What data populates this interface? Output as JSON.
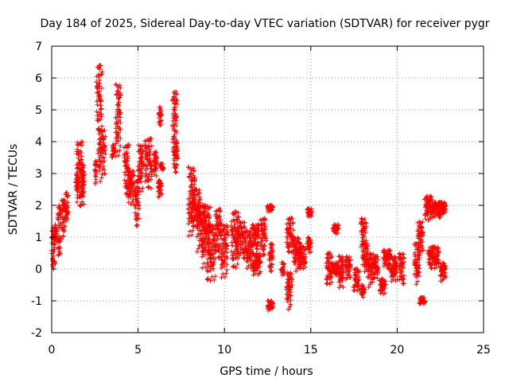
{
  "chart_data": {
    "type": "scatter",
    "title": "Day 184 of 2025, Sidereal Day-to-day VTEC variation (SDTVAR) for receiver pygr",
    "xlabel": "GPS time / hours",
    "ylabel": "SDTVAR / TECUs",
    "xlim": [
      0,
      25
    ],
    "ylim": [
      -2,
      7
    ],
    "x_ticks": [
      0,
      5,
      10,
      15,
      20,
      25
    ],
    "y_ticks": [
      -2,
      -1,
      0,
      1,
      2,
      3,
      4,
      5,
      6,
      7
    ],
    "x_tick_labels": [
      "0",
      "5",
      "10",
      "15",
      "20",
      "25"
    ],
    "y_tick_labels": [
      "-2",
      "-1",
      "0",
      "1",
      "2",
      "3",
      "4",
      "5",
      "6",
      "7"
    ],
    "grid": true,
    "marker": "+",
    "series_color": "#ff0000",
    "series": [
      {
        "name": "SDTVAR",
        "segments": [
          [
            0.0,
            0.2,
            0.0,
            1.3
          ],
          [
            0.15,
            0.3,
            0.9,
            1.4
          ],
          [
            0.35,
            0.55,
            0.4,
            2.0
          ],
          [
            0.6,
            0.8,
            1.0,
            2.2
          ],
          [
            0.8,
            0.95,
            1.5,
            2.4
          ],
          [
            1.4,
            1.55,
            2.3,
            3.0
          ],
          [
            1.45,
            1.8,
            1.9,
            4.0
          ],
          [
            1.7,
            1.9,
            2.0,
            3.3
          ],
          [
            2.5,
            2.6,
            2.6,
            3.4
          ],
          [
            2.6,
            2.9,
            4.3,
            6.4
          ],
          [
            2.7,
            3.1,
            2.7,
            4.4
          ],
          [
            3.5,
            3.65,
            3.5,
            3.9
          ],
          [
            3.7,
            4.0,
            3.5,
            5.8
          ],
          [
            4.2,
            4.5,
            2.3,
            3.9
          ],
          [
            4.4,
            4.75,
            2.0,
            3.1
          ],
          [
            4.8,
            5.05,
            1.3,
            2.8
          ],
          [
            5.0,
            5.3,
            2.4,
            3.9
          ],
          [
            5.4,
            5.8,
            2.5,
            4.1
          ],
          [
            5.9,
            6.1,
            2.9,
            3.7
          ],
          [
            6.15,
            6.35,
            2.2,
            2.8
          ],
          [
            6.2,
            6.35,
            4.5,
            5.1
          ],
          [
            6.3,
            6.45,
            3.1,
            3.3
          ],
          [
            7.0,
            7.25,
            3.5,
            5.6
          ],
          [
            7.05,
            7.3,
            3.0,
            4.0
          ],
          [
            7.9,
            8.3,
            1.0,
            3.2
          ],
          [
            8.1,
            8.6,
            1.3,
            2.5
          ],
          [
            8.4,
            8.9,
            0.5,
            2.0
          ],
          [
            8.7,
            9.2,
            0.0,
            2.0
          ],
          [
            9.0,
            9.5,
            -0.4,
            1.4
          ],
          [
            9.5,
            9.8,
            0.3,
            1.9
          ],
          [
            9.8,
            10.2,
            -0.3,
            1.4
          ],
          [
            10.4,
            10.8,
            0.0,
            1.8
          ],
          [
            10.7,
            11.2,
            0.3,
            1.5
          ],
          [
            11.2,
            11.6,
            0.0,
            1.2
          ],
          [
            11.6,
            12.0,
            0.6,
            1.4
          ],
          [
            11.6,
            12.1,
            -0.2,
            0.5
          ],
          [
            12.1,
            12.4,
            0.4,
            1.6
          ],
          [
            12.5,
            12.8,
            -1.3,
            -1.0
          ],
          [
            12.5,
            12.8,
            1.8,
            2.0
          ],
          [
            12.6,
            12.8,
            -0.1,
            0.8
          ],
          [
            13.3,
            13.45,
            -0.2,
            0.2
          ],
          [
            13.6,
            13.9,
            -1.3,
            -0.1
          ],
          [
            13.6,
            14.0,
            0.5,
            1.6
          ],
          [
            14.0,
            14.4,
            -0.1,
            1.0
          ],
          [
            14.3,
            14.7,
            0.0,
            0.7
          ],
          [
            14.8,
            15.0,
            0.5,
            1.0
          ],
          [
            14.8,
            15.05,
            1.6,
            1.9
          ],
          [
            15.9,
            16.2,
            -0.5,
            0.5
          ],
          [
            16.3,
            16.6,
            1.1,
            1.4
          ],
          [
            16.2,
            16.6,
            -0.2,
            0.2
          ],
          [
            16.6,
            16.9,
            -0.6,
            0.4
          ],
          [
            17.0,
            17.3,
            -0.4,
            0.4
          ],
          [
            17.5,
            17.8,
            -0.7,
            0.0
          ],
          [
            17.9,
            18.1,
            -0.9,
            -0.5
          ],
          [
            17.9,
            18.2,
            0.6,
            1.6
          ],
          [
            18.0,
            18.3,
            -0.1,
            0.8
          ],
          [
            18.3,
            18.6,
            -0.6,
            0.5
          ],
          [
            18.6,
            18.9,
            -0.3,
            0.4
          ],
          [
            19.0,
            19.3,
            -0.8,
            -0.3
          ],
          [
            19.2,
            19.6,
            0.0,
            0.6
          ],
          [
            19.6,
            20.0,
            -0.4,
            0.4
          ],
          [
            20.1,
            20.4,
            -0.5,
            0.5
          ],
          [
            21.0,
            21.3,
            -0.5,
            0.8
          ],
          [
            21.2,
            21.5,
            0.4,
            1.5
          ],
          [
            21.3,
            21.6,
            -1.1,
            -0.9
          ],
          [
            21.6,
            22.0,
            1.5,
            2.3
          ],
          [
            21.8,
            22.4,
            0.0,
            0.7
          ],
          [
            22.0,
            22.5,
            1.6,
            2.1
          ],
          [
            22.4,
            22.8,
            1.7,
            2.1
          ],
          [
            22.5,
            22.8,
            -0.4,
            0.2
          ]
        ]
      }
    ]
  }
}
